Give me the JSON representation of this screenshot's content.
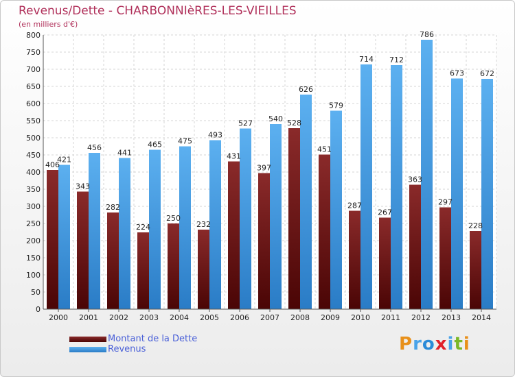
{
  "header": {
    "title": "Revenus/Dette - CHARBONNIèRES-LES-VIEILLES",
    "subtitle": "(en milliers d'€)"
  },
  "legend": {
    "items": [
      {
        "label": "Montant de la Dette",
        "color": "#7a1818"
      },
      {
        "label": "Revenus",
        "color": "#4aa3e8"
      }
    ]
  },
  "logo": {
    "letters": [
      "P",
      "r",
      "o",
      "x",
      "i",
      "t",
      "i"
    ],
    "colors": [
      "#e8901a",
      "#4aa3e8",
      "#2b8bd8",
      "#e0202a",
      "#4aa3e8",
      "#7ab828",
      "#e8901a"
    ]
  },
  "chart_data": {
    "type": "bar",
    "categories": [
      "2000",
      "2001",
      "2002",
      "2003",
      "2004",
      "2005",
      "2006",
      "2007",
      "2008",
      "2009",
      "2010",
      "2011",
      "2012",
      "2013",
      "2014"
    ],
    "series": [
      {
        "name": "Montant de la Dette",
        "color": "#7a1818",
        "values": [
          406,
          343,
          282,
          224,
          250,
          232,
          431,
          397,
          528,
          451,
          287,
          267,
          363,
          297,
          228
        ]
      },
      {
        "name": "Revenus",
        "color": "#4aa3e8",
        "values": [
          421,
          456,
          441,
          465,
          475,
          493,
          527,
          540,
          626,
          579,
          714,
          712,
          786,
          673,
          672
        ]
      }
    ],
    "ylim": [
      0,
      800
    ],
    "yticks": [
      0,
      50,
      100,
      150,
      200,
      250,
      300,
      350,
      400,
      450,
      500,
      550,
      600,
      650,
      700,
      750,
      800
    ],
    "grid": true,
    "legend_position": "bottom-left"
  }
}
